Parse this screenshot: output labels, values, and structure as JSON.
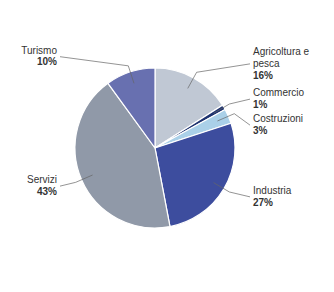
{
  "chart_data": {
    "type": "pie",
    "categories": [
      "Agricoltura e\npesca",
      "Commercio",
      "Costruzioni",
      "Industria",
      "Servizi",
      "Turismo"
    ],
    "values": [
      16,
      1,
      3,
      27,
      43,
      10
    ],
    "value_labels": [
      "16%",
      "1%",
      "3%",
      "27%",
      "43%",
      "10%"
    ],
    "colors": [
      "#c0c8d4",
      "#1e3370",
      "#aad0e8",
      "#3d4d9e",
      "#9099a8",
      "#6870b0"
    ],
    "data_labels": true
  }
}
